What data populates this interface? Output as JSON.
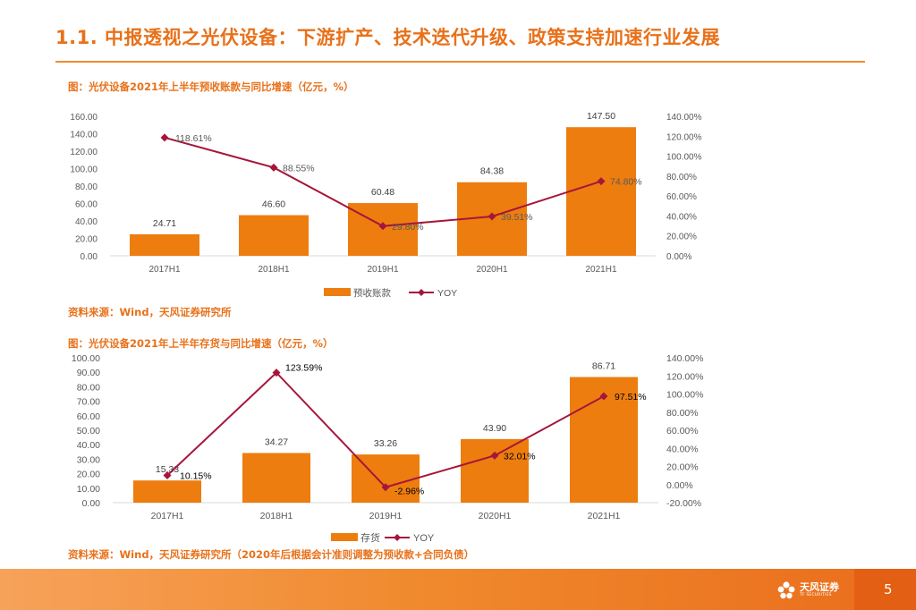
{
  "header": {
    "title": "1.1. 中报透视之光伏设备：下游扩产、技术迭代升级、政策支持加速行业发展"
  },
  "chart1": {
    "caption": "图：光伏设备2021年上半年预收账款与同比增速（亿元，%）",
    "source": "资料来源：Wind，天风证券研究所"
  },
  "chart2": {
    "caption": "图：光伏设备2021年上半年存货与同比增速（亿元，%）",
    "source": "资料来源：Wind，天风证券研究所（2020年后根据会计准则调整为预收款+合同负债）"
  },
  "footer": {
    "logo_text": "天风证券",
    "logo_sub": "TF SECURITIES",
    "page": "5"
  },
  "colors": {
    "accent": "#e8711a",
    "bar": "#ed7d0f",
    "line": "#a6163a"
  },
  "chart_data": [
    {
      "type": "bar",
      "categories": [
        "2017H1",
        "2018H1",
        "2019H1",
        "2020H1",
        "2021H1"
      ],
      "series": [
        {
          "name": "预收账款",
          "type": "bar",
          "values": [
            24.71,
            46.6,
            60.48,
            84.38,
            147.5
          ],
          "labels": [
            "24.71",
            "46.60",
            "60.48",
            "84.38",
            "147.50"
          ]
        },
        {
          "name": "YOY",
          "type": "line",
          "values": [
            118.61,
            88.55,
            29.8,
            39.51,
            74.8
          ],
          "labels": [
            "118.61%",
            "88.55%",
            "29.80%",
            "39.51%",
            "74.80%"
          ],
          "axis": "right"
        }
      ],
      "ylim": [
        0,
        160
      ],
      "yticks": [
        "0.00",
        "20.00",
        "40.00",
        "60.00",
        "80.00",
        "100.00",
        "120.00",
        "140.00",
        "160.00"
      ],
      "y2lim": [
        0,
        140
      ],
      "y2ticks": [
        "0.00%",
        "20.00%",
        "40.00%",
        "60.00%",
        "80.00%",
        "100.00%",
        "120.00%",
        "140.00%"
      ],
      "grid": false,
      "legend": "bottom"
    },
    {
      "type": "bar",
      "categories": [
        "2017H1",
        "2018H1",
        "2019H1",
        "2020H1",
        "2021H1"
      ],
      "series": [
        {
          "name": "存货",
          "type": "bar",
          "values": [
            15.33,
            34.27,
            33.26,
            43.9,
            86.71
          ],
          "labels": [
            "15.33",
            "34.27",
            "33.26",
            "43.90",
            "86.71"
          ]
        },
        {
          "name": "YOY",
          "type": "line",
          "values": [
            10.15,
            123.59,
            -2.96,
            32.01,
            97.51
          ],
          "labels": [
            "10.15%",
            "123.59%",
            "-2.96%",
            "32.01%",
            "97.51%"
          ],
          "axis": "right"
        }
      ],
      "ylim": [
        0,
        100
      ],
      "yticks": [
        "0.00",
        "10.00",
        "20.00",
        "30.00",
        "40.00",
        "50.00",
        "60.00",
        "70.00",
        "80.00",
        "90.00",
        "100.00"
      ],
      "y2lim": [
        -20,
        140
      ],
      "y2ticks": [
        "-20.00%",
        "0.00%",
        "20.00%",
        "40.00%",
        "60.00%",
        "80.00%",
        "100.00%",
        "120.00%",
        "140.00%"
      ],
      "grid": false,
      "legend": "bottom"
    }
  ]
}
